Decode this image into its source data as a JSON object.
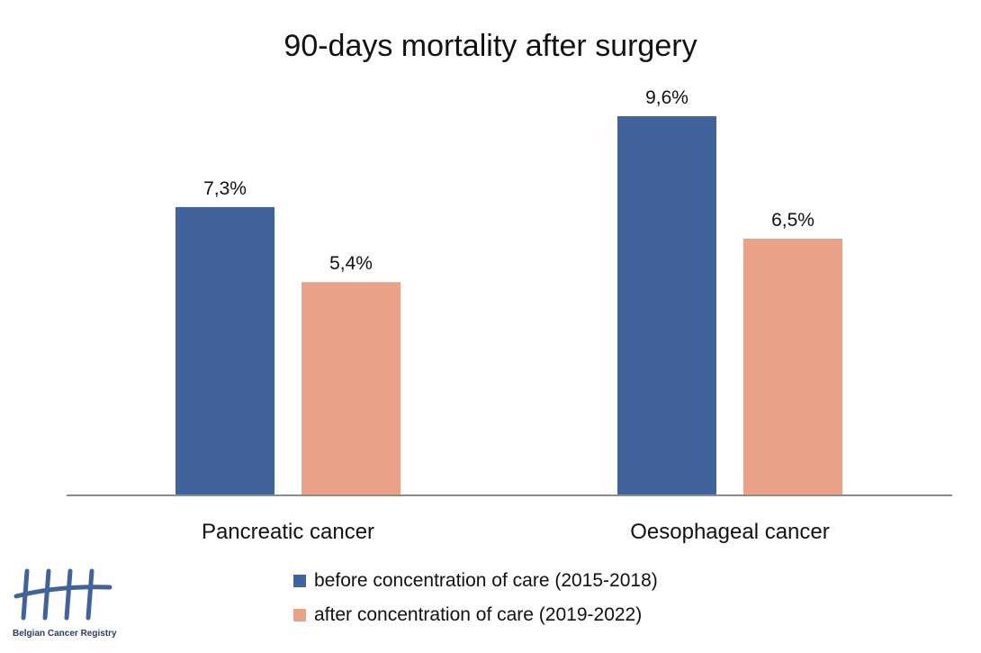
{
  "chart_data": {
    "type": "bar",
    "title": "90-days mortality after surgery",
    "categories": [
      "Pancreatic cancer",
      "Oesophageal cancer"
    ],
    "series": [
      {
        "name": "before concentration of care (2015-2018)",
        "color": "#41639b",
        "values": [
          7.3,
          9.6
        ],
        "labels": [
          "7,3%",
          "9,6%"
        ]
      },
      {
        "name": "after concentration of care (2019-2022)",
        "color": "#e9a187",
        "values": [
          5.4,
          6.5
        ],
        "labels": [
          "5,4%",
          "6,5%"
        ]
      }
    ],
    "xlabel": "",
    "ylabel": "",
    "ylim": [
      0,
      10
    ],
    "grid": false,
    "legend": "bottom"
  },
  "logo": {
    "text": "Belgian Cancer Registry",
    "color": "#41639b",
    "icon": "tally-marks-icon"
  }
}
